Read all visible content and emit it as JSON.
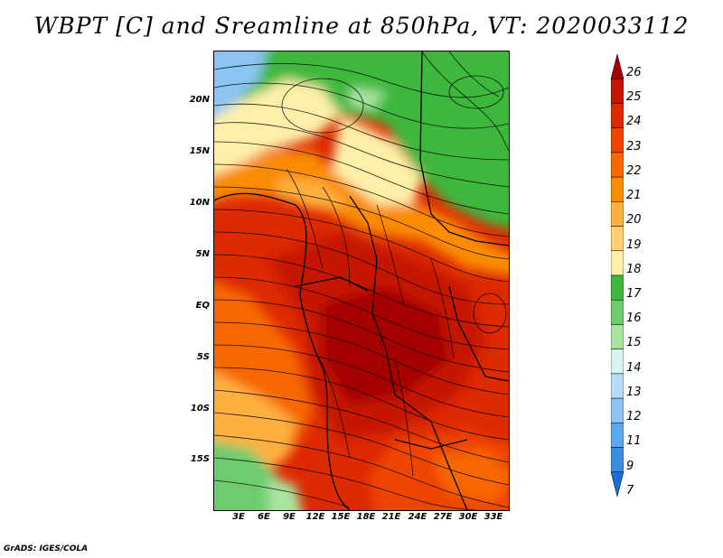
{
  "title": "WBPT [C] and Sreamline at 850hPa, VT: 2020033112",
  "credit": "GrADS: IGES/COLA",
  "map": {
    "lat_labels": [
      "20N",
      "15N",
      "10N",
      "5N",
      "EQ",
      "5S",
      "10S",
      "15S"
    ],
    "lon_labels": [
      "3E",
      "6E",
      "9E",
      "12E",
      "15E",
      "18E",
      "21E",
      "24E",
      "27E",
      "30E",
      "33E"
    ]
  },
  "colorbar": {
    "labels": [
      "26",
      "25",
      "24",
      "23",
      "22",
      "21",
      "20",
      "19",
      "18",
      "17",
      "16",
      "15",
      "14",
      "13",
      "12",
      "11",
      "9",
      "7"
    ],
    "colors": [
      "#a50000",
      "#c41400",
      "#dd2a00",
      "#ee4400",
      "#f76800",
      "#fb8c00",
      "#fdb040",
      "#fed070",
      "#fef0a8",
      "#3cb83c",
      "#6ecc6e",
      "#a8e4a0",
      "#d6f4f4",
      "#b4dcf8",
      "#8cc4f4",
      "#5ca8ec",
      "#3c8ce4",
      "#1e6cdc"
    ]
  }
}
